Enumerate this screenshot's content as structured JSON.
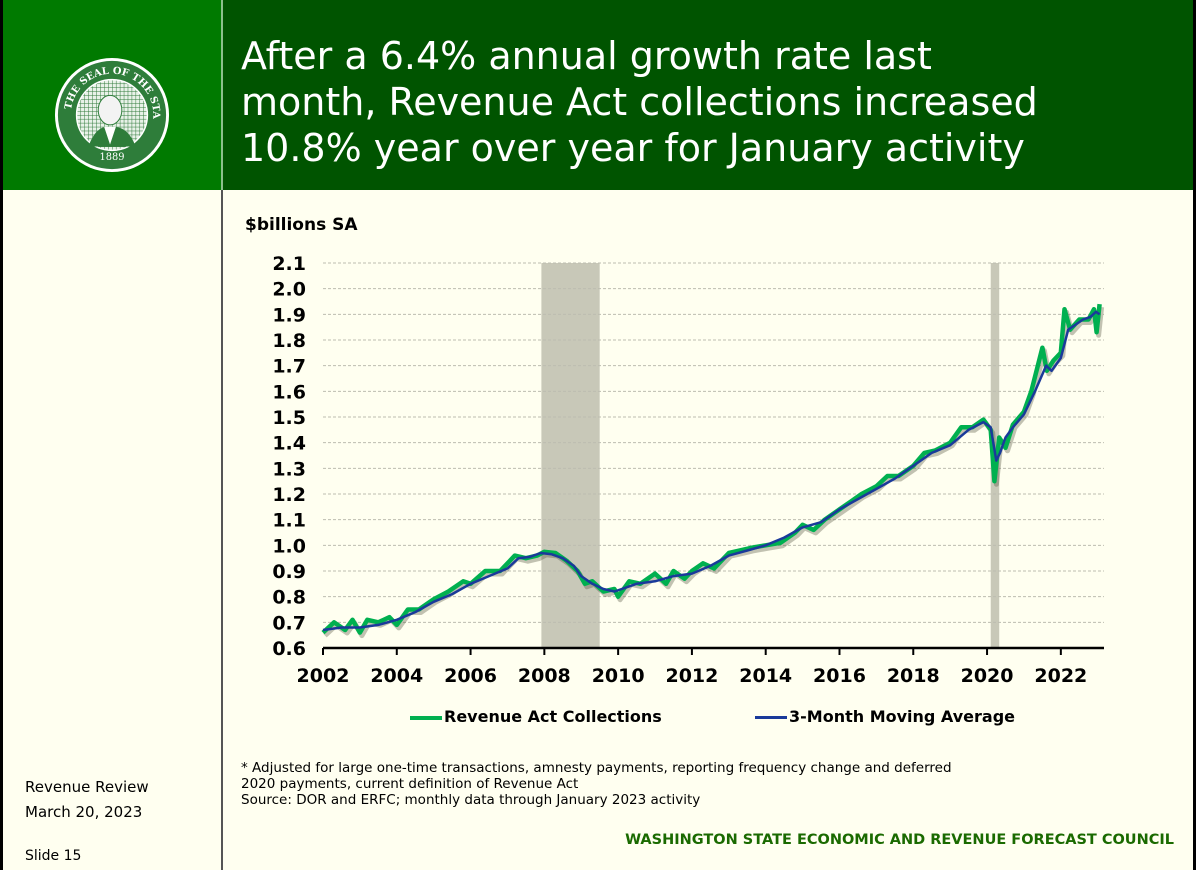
{
  "header": {
    "title_lines": [
      "After a 6.4% annual growth rate last",
      "month, Revenue Act collections increased",
      "10.8% year over year for January activity"
    ],
    "logo": {
      "name": "seal-of-the-state-of-washington",
      "text_top": "THE SEAL OF THE STATE OF WASHINGTON",
      "year": "1889"
    }
  },
  "sidebar": {
    "event": "Revenue Review",
    "date": "March 20, 2023",
    "slide": "Slide 15"
  },
  "notes": {
    "line1": "* Adjusted for large one-time transactions, amnesty payments, reporting frequency change and deferred",
    "line2": "2020 payments, current definition of Revenue Act",
    "source": "Source: DOR and ERFC; monthly data through January 2023 activity"
  },
  "footer": {
    "organization": "WASHINGTON STATE ECONOMIC AND REVENUE FORECAST COUNCIL"
  },
  "colors": {
    "logo_bg": "#007a00",
    "title_bg": "#005400",
    "slide_bg": "#fffff0",
    "collections": "#00b050",
    "moving_average": "#1a3a9a",
    "recession": "#c8c8b8",
    "footer_text": "#1a6a00"
  },
  "chart_data": {
    "type": "line",
    "title": "",
    "ylabel": "$billions SA",
    "xlabel": "",
    "ylim": [
      0.6,
      2.1
    ],
    "xlim": [
      2002,
      2023.17
    ],
    "yticks": [
      "0.6",
      "0.7",
      "0.8",
      "0.9",
      "1.0",
      "1.1",
      "1.2",
      "1.3",
      "1.4",
      "1.5",
      "1.6",
      "1.7",
      "1.8",
      "1.9",
      "2.0",
      "2.1"
    ],
    "xticks": [
      "2002",
      "2004",
      "2006",
      "2008",
      "2010",
      "2012",
      "2014",
      "2016",
      "2018",
      "2020",
      "2022"
    ],
    "grid": true,
    "legend_position": "bottom",
    "recessions": [
      [
        2007.92,
        2009.5
      ],
      [
        2020.1,
        2020.33
      ]
    ],
    "series": [
      {
        "name": "Revenue Act Collections",
        "x": [
          2002.0,
          2002.3,
          2002.6,
          2002.8,
          2003.0,
          2003.2,
          2003.5,
          2003.8,
          2004.0,
          2004.3,
          2004.6,
          2005.0,
          2005.4,
          2005.8,
          2006.0,
          2006.4,
          2006.8,
          2007.0,
          2007.2,
          2007.5,
          2007.8,
          2008.0,
          2008.3,
          2008.6,
          2008.9,
          2009.1,
          2009.3,
          2009.6,
          2009.9,
          2010.0,
          2010.3,
          2010.6,
          2011.0,
          2011.3,
          2011.5,
          2011.8,
          2012.0,
          2012.3,
          2012.6,
          2013.0,
          2013.3,
          2013.6,
          2014.0,
          2014.4,
          2014.8,
          2015.0,
          2015.3,
          2015.6,
          2016.0,
          2016.3,
          2016.6,
          2017.0,
          2017.3,
          2017.6,
          2018.0,
          2018.3,
          2018.6,
          2019.0,
          2019.3,
          2019.6,
          2019.9,
          2020.1,
          2020.2,
          2020.33,
          2020.5,
          2020.7,
          2021.0,
          2021.2,
          2021.5,
          2021.62,
          2021.8,
          2022.0,
          2022.1,
          2022.25,
          2022.5,
          2022.75,
          2022.9,
          2022.97,
          2023.05
        ],
        "values": [
          0.66,
          0.7,
          0.67,
          0.71,
          0.66,
          0.71,
          0.7,
          0.72,
          0.69,
          0.75,
          0.75,
          0.79,
          0.82,
          0.86,
          0.85,
          0.9,
          0.9,
          0.93,
          0.96,
          0.95,
          0.96,
          0.975,
          0.97,
          0.94,
          0.9,
          0.85,
          0.86,
          0.82,
          0.83,
          0.8,
          0.86,
          0.85,
          0.89,
          0.85,
          0.9,
          0.87,
          0.9,
          0.93,
          0.91,
          0.97,
          0.98,
          0.99,
          1.0,
          1.01,
          1.05,
          1.08,
          1.06,
          1.1,
          1.14,
          1.17,
          1.2,
          1.23,
          1.27,
          1.27,
          1.31,
          1.36,
          1.37,
          1.4,
          1.46,
          1.46,
          1.49,
          1.45,
          1.25,
          1.42,
          1.38,
          1.47,
          1.52,
          1.6,
          1.77,
          1.68,
          1.72,
          1.75,
          1.92,
          1.84,
          1.88,
          1.88,
          1.92,
          1.83,
          1.94
        ]
      },
      {
        "name": "3-Month Moving Average",
        "x": [
          2002.0,
          2002.5,
          2003.0,
          2003.5,
          2004.0,
          2004.5,
          2005.0,
          2005.5,
          2006.0,
          2006.5,
          2007.0,
          2007.3,
          2007.6,
          2007.9,
          2008.2,
          2008.5,
          2008.8,
          2009.0,
          2009.3,
          2009.6,
          2009.9,
          2010.1,
          2010.5,
          2011.0,
          2011.5,
          2012.0,
          2012.5,
          2013.0,
          2013.5,
          2014.0,
          2014.5,
          2015.0,
          2015.5,
          2016.0,
          2016.5,
          2017.0,
          2017.5,
          2018.0,
          2018.5,
          2019.0,
          2019.5,
          2019.9,
          2020.1,
          2020.25,
          2020.35,
          2020.5,
          2020.7,
          2021.0,
          2021.3,
          2021.6,
          2021.75,
          2022.0,
          2022.2,
          2022.4,
          2022.6,
          2022.8,
          2022.95,
          2023.05
        ],
        "values": [
          0.67,
          0.68,
          0.68,
          0.69,
          0.71,
          0.74,
          0.78,
          0.81,
          0.85,
          0.88,
          0.91,
          0.95,
          0.955,
          0.97,
          0.965,
          0.95,
          0.92,
          0.88,
          0.85,
          0.83,
          0.82,
          0.83,
          0.85,
          0.86,
          0.88,
          0.89,
          0.92,
          0.96,
          0.98,
          1.0,
          1.03,
          1.07,
          1.09,
          1.14,
          1.18,
          1.22,
          1.26,
          1.31,
          1.36,
          1.39,
          1.45,
          1.48,
          1.46,
          1.33,
          1.36,
          1.42,
          1.46,
          1.51,
          1.6,
          1.7,
          1.68,
          1.73,
          1.84,
          1.86,
          1.88,
          1.89,
          1.91,
          1.9
        ]
      }
    ]
  }
}
